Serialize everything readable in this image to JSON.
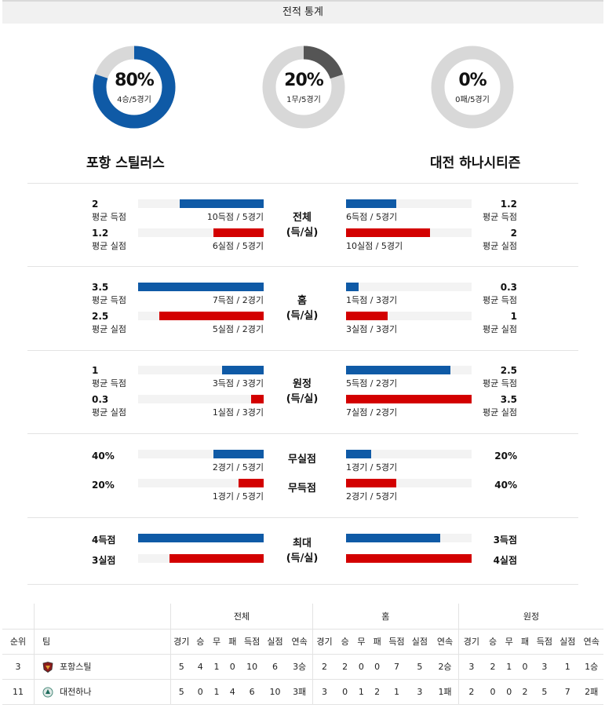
{
  "header": {
    "title": "전적 통계"
  },
  "donuts": [
    {
      "pct": "80%",
      "sub": "4승/5경기",
      "fraction": 0.8,
      "color": "#0f5aa6"
    },
    {
      "pct": "20%",
      "sub": "1무/5경기",
      "fraction": 0.2,
      "color": "#555555"
    },
    {
      "pct": "0%",
      "sub": "0패/5경기",
      "fraction": 0.0,
      "color": "#555555"
    }
  ],
  "teams": {
    "home": "포항 스틸러스",
    "away": "대전 하나시티즌"
  },
  "sections": [
    {
      "label1": "전체",
      "label2": "(득/실)",
      "rows": [
        {
          "left_val": "2",
          "left_lbl": "평균 득점",
          "left_cap": "10득점 / 5경기",
          "left_frac": 0.67,
          "right_val": "1.2",
          "right_lbl": "평균 득점",
          "right_cap": "6득점 / 5경기",
          "right_frac": 0.4,
          "type": "score"
        },
        {
          "left_val": "1.2",
          "left_lbl": "평균 실점",
          "left_cap": "6실점 / 5경기",
          "left_frac": 0.4,
          "right_val": "2",
          "right_lbl": "평균 실점",
          "right_cap": "10실점 / 5경기",
          "right_frac": 0.67,
          "type": "concede"
        }
      ]
    },
    {
      "label1": "홈",
      "label2": "(득/실)",
      "rows": [
        {
          "left_val": "3.5",
          "left_lbl": "평균 득점",
          "left_cap": "7득점 / 2경기",
          "left_frac": 1.0,
          "right_val": "0.3",
          "right_lbl": "평균 득점",
          "right_cap": "1득점 / 3경기",
          "right_frac": 0.1,
          "type": "score"
        },
        {
          "left_val": "2.5",
          "left_lbl": "평균 실점",
          "left_cap": "5실점 / 2경기",
          "left_frac": 0.83,
          "right_val": "1",
          "right_lbl": "평균 실점",
          "right_cap": "3실점 / 3경기",
          "right_frac": 0.33,
          "type": "concede"
        }
      ]
    },
    {
      "label1": "원정",
      "label2": "(득/실)",
      "rows": [
        {
          "left_val": "1",
          "left_lbl": "평균 득점",
          "left_cap": "3득점 / 3경기",
          "left_frac": 0.33,
          "right_val": "2.5",
          "right_lbl": "평균 득점",
          "right_cap": "5득점 / 2경기",
          "right_frac": 0.83,
          "type": "score"
        },
        {
          "left_val": "0.3",
          "left_lbl": "평균 실점",
          "left_cap": "1실점 / 3경기",
          "left_frac": 0.1,
          "right_val": "3.5",
          "right_lbl": "평균 실점",
          "right_cap": "7실점 / 2경기",
          "right_frac": 1.0,
          "type": "concede"
        }
      ]
    }
  ],
  "nullsec": {
    "rows": [
      {
        "mid": "무실점",
        "left_val": "40%",
        "left_cap": "2경기 / 5경기",
        "left_frac": 0.4,
        "right_val": "20%",
        "right_cap": "1경기 / 5경기",
        "right_frac": 0.2,
        "type": "score"
      },
      {
        "mid": "무득점",
        "left_val": "20%",
        "left_cap": "1경기 / 5경기",
        "left_frac": 0.2,
        "right_val": "40%",
        "right_cap": "2경기 / 5경기",
        "right_frac": 0.4,
        "type": "concede"
      }
    ]
  },
  "maxsec": {
    "label1": "최대",
    "label2": "(득/실)",
    "rows": [
      {
        "left_val": "4득점",
        "left_frac": 1.0,
        "right_val": "3득점",
        "right_frac": 0.75,
        "type": "score"
      },
      {
        "left_val": "3실점",
        "left_frac": 0.75,
        "right_val": "4실점",
        "right_frac": 1.0,
        "type": "concede"
      }
    ]
  },
  "table": {
    "groups": [
      "전체",
      "홈",
      "원정"
    ],
    "rank_header": "순위",
    "team_header": "팀",
    "cols": [
      "경기",
      "승",
      "무",
      "패",
      "득점",
      "실점",
      "연속"
    ],
    "rows": [
      {
        "rank": "3",
        "team": "포항스틸",
        "emblem": "pohang-emblem",
        "total": [
          "5",
          "4",
          "1",
          "0",
          "10",
          "6",
          "3승"
        ],
        "home": [
          "2",
          "2",
          "0",
          "0",
          "7",
          "5",
          "2승"
        ],
        "away": [
          "3",
          "2",
          "1",
          "0",
          "3",
          "1",
          "1승"
        ]
      },
      {
        "rank": "11",
        "team": "대전하나",
        "emblem": "daejeon-emblem",
        "total": [
          "5",
          "0",
          "1",
          "4",
          "6",
          "10",
          "3패"
        ],
        "home": [
          "3",
          "0",
          "1",
          "2",
          "1",
          "3",
          "1패"
        ],
        "away": [
          "2",
          "0",
          "0",
          "2",
          "5",
          "7",
          "2패"
        ]
      }
    ]
  }
}
